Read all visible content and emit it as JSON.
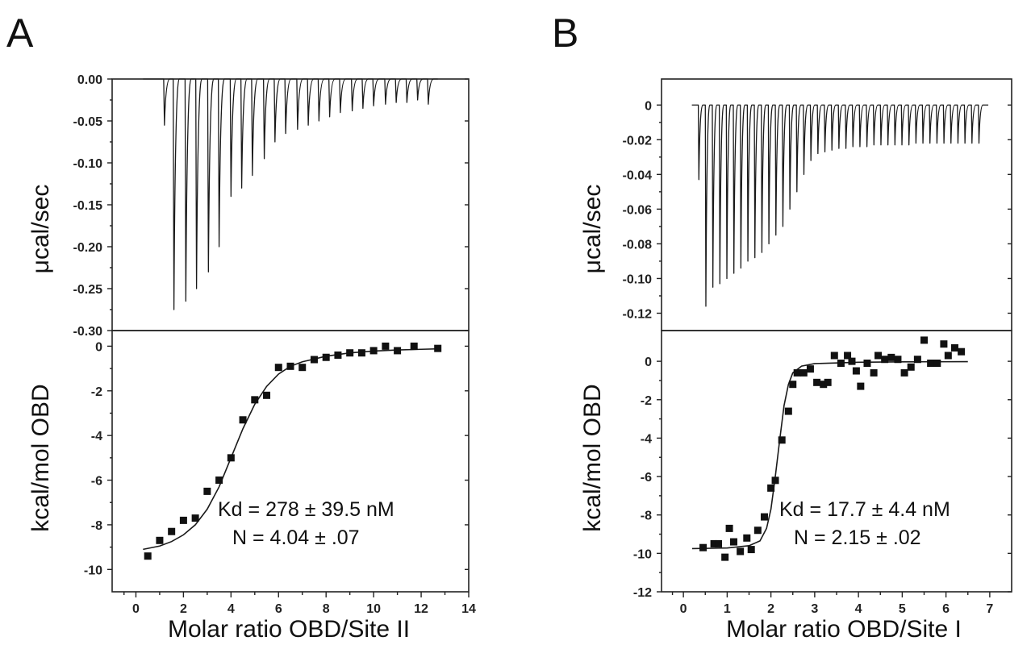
{
  "chart_data": [
    {
      "panel": "A",
      "top": {
        "type": "line",
        "ylabel": "μcal/sec",
        "ylim": [
          -0.3,
          0.0
        ],
        "yticks": [
          0.0,
          -0.05,
          -0.1,
          -0.15,
          -0.2,
          -0.25,
          -0.3
        ],
        "ytick_labels": [
          "0.00",
          "-0.05",
          "-0.10",
          "-0.15",
          "-0.20",
          "-0.25",
          "-0.30"
        ],
        "xlim": [
          -1,
          14
        ],
        "trace_x_range": [
          0.3,
          12.7
        ],
        "injection_peaks": [
          {
            "x": 1.2,
            "y": -0.055
          },
          {
            "x": 1.6,
            "y": -0.275
          },
          {
            "x": 2.1,
            "y": -0.265
          },
          {
            "x": 2.55,
            "y": -0.25
          },
          {
            "x": 3.05,
            "y": -0.23
          },
          {
            "x": 3.5,
            "y": -0.2
          },
          {
            "x": 4.0,
            "y": -0.14
          },
          {
            "x": 4.45,
            "y": -0.13
          },
          {
            "x": 4.9,
            "y": -0.115
          },
          {
            "x": 5.4,
            "y": -0.095
          },
          {
            "x": 5.85,
            "y": -0.075
          },
          {
            "x": 6.3,
            "y": -0.065
          },
          {
            "x": 6.8,
            "y": -0.06
          },
          {
            "x": 7.25,
            "y": -0.055
          },
          {
            "x": 7.7,
            "y": -0.05
          },
          {
            "x": 8.15,
            "y": -0.045
          },
          {
            "x": 8.6,
            "y": -0.04
          },
          {
            "x": 9.1,
            "y": -0.038
          },
          {
            "x": 9.55,
            "y": -0.035
          },
          {
            "x": 10.0,
            "y": -0.032
          },
          {
            "x": 10.5,
            "y": -0.03
          },
          {
            "x": 10.95,
            "y": -0.028
          },
          {
            "x": 11.4,
            "y": -0.028
          },
          {
            "x": 11.85,
            "y": -0.025
          },
          {
            "x": 12.3,
            "y": -0.03
          }
        ]
      },
      "bottom": {
        "type": "scatter",
        "ylabel": "kcal/mol OBD",
        "xlabel": "Molar ratio OBD/Site II",
        "xlim": [
          -1,
          14
        ],
        "xticks": [
          0,
          2,
          4,
          6,
          8,
          10,
          12,
          14
        ],
        "xtick_labels": [
          "0",
          "2",
          "4",
          "6",
          "8",
          "10",
          "12",
          "14"
        ],
        "ylim": [
          -11,
          0.7
        ],
        "yticks": [
          0,
          -2,
          -4,
          -6,
          -8,
          -10
        ],
        "ytick_labels": [
          "0",
          "-2",
          "-4",
          "-6",
          "-8",
          "-10"
        ],
        "points": [
          [
            0.5,
            -9.4
          ],
          [
            1.0,
            -8.7
          ],
          [
            1.5,
            -8.3
          ],
          [
            2.0,
            -7.8
          ],
          [
            2.5,
            -7.7
          ],
          [
            3.0,
            -6.5
          ],
          [
            3.5,
            -6.0
          ],
          [
            4.0,
            -5.0
          ],
          [
            4.5,
            -3.3
          ],
          [
            5.0,
            -2.4
          ],
          [
            5.5,
            -2.2
          ],
          [
            6.0,
            -0.95
          ],
          [
            6.5,
            -0.9
          ],
          [
            7.0,
            -0.95
          ],
          [
            7.5,
            -0.6
          ],
          [
            8.0,
            -0.5
          ],
          [
            8.5,
            -0.4
          ],
          [
            9.0,
            -0.3
          ],
          [
            9.5,
            -0.3
          ],
          [
            10.0,
            -0.2
          ],
          [
            10.5,
            0.0
          ],
          [
            11.0,
            -0.2
          ],
          [
            11.7,
            0.0
          ],
          [
            12.7,
            -0.1
          ]
        ],
        "fit": [
          [
            0.3,
            -9.1
          ],
          [
            1.0,
            -8.95
          ],
          [
            1.5,
            -8.75
          ],
          [
            2.0,
            -8.45
          ],
          [
            2.5,
            -8.0
          ],
          [
            3.0,
            -7.3
          ],
          [
            3.5,
            -6.3
          ],
          [
            4.0,
            -5.0
          ],
          [
            4.5,
            -3.7
          ],
          [
            5.0,
            -2.6
          ],
          [
            5.5,
            -1.8
          ],
          [
            6.0,
            -1.25
          ],
          [
            6.5,
            -0.9
          ],
          [
            7.0,
            -0.7
          ],
          [
            8.0,
            -0.45
          ],
          [
            9.0,
            -0.3
          ],
          [
            10.0,
            -0.22
          ],
          [
            11.0,
            -0.17
          ],
          [
            12.0,
            -0.14
          ],
          [
            12.7,
            -0.12
          ]
        ],
        "annotations": [
          "Kd = 278 ± 39.5 nM",
          "N = 4.04 ± .07"
        ]
      }
    },
    {
      "panel": "B",
      "top": {
        "type": "line",
        "ylabel": "μcal/sec",
        "ylim": [
          -0.13,
          0.015
        ],
        "yticks": [
          0,
          -0.02,
          -0.04,
          -0.06,
          -0.08,
          -0.1,
          -0.12
        ],
        "ytick_labels": [
          "0",
          "-0.02",
          "-0.04",
          "-0.06",
          "-0.08",
          "-0.10",
          "-0.12"
        ],
        "xlim": [
          -0.5,
          7
        ],
        "trace_x_range": [
          0.15,
          6.5
        ],
        "injection_peaks": [
          {
            "x": 0.3,
            "y": -0.043
          },
          {
            "x": 0.45,
            "y": -0.116
          },
          {
            "x": 0.6,
            "y": -0.105
          },
          {
            "x": 0.75,
            "y": -0.103
          },
          {
            "x": 0.9,
            "y": -0.1
          },
          {
            "x": 1.05,
            "y": -0.097
          },
          {
            "x": 1.2,
            "y": -0.094
          },
          {
            "x": 1.35,
            "y": -0.09
          },
          {
            "x": 1.5,
            "y": -0.088
          },
          {
            "x": 1.65,
            "y": -0.085
          },
          {
            "x": 1.8,
            "y": -0.08
          },
          {
            "x": 1.95,
            "y": -0.075
          },
          {
            "x": 2.1,
            "y": -0.07
          },
          {
            "x": 2.25,
            "y": -0.06
          },
          {
            "x": 2.4,
            "y": -0.05
          },
          {
            "x": 2.55,
            "y": -0.04
          },
          {
            "x": 2.7,
            "y": -0.032
          },
          {
            "x": 2.85,
            "y": -0.028
          },
          {
            "x": 3.0,
            "y": -0.027
          },
          {
            "x": 3.15,
            "y": -0.026
          },
          {
            "x": 3.3,
            "y": -0.025
          },
          {
            "x": 3.45,
            "y": -0.025
          },
          {
            "x": 3.6,
            "y": -0.024
          },
          {
            "x": 3.75,
            "y": -0.024
          },
          {
            "x": 3.9,
            "y": -0.024
          },
          {
            "x": 4.05,
            "y": -0.023
          },
          {
            "x": 4.2,
            "y": -0.023
          },
          {
            "x": 4.35,
            "y": -0.023
          },
          {
            "x": 4.5,
            "y": -0.023
          },
          {
            "x": 4.65,
            "y": -0.023
          },
          {
            "x": 4.8,
            "y": -0.023
          },
          {
            "x": 4.95,
            "y": -0.022
          },
          {
            "x": 5.1,
            "y": -0.022
          },
          {
            "x": 5.25,
            "y": -0.022
          },
          {
            "x": 5.4,
            "y": -0.022
          },
          {
            "x": 5.55,
            "y": -0.022
          },
          {
            "x": 5.7,
            "y": -0.022
          },
          {
            "x": 5.85,
            "y": -0.022
          },
          {
            "x": 6.0,
            "y": -0.022
          },
          {
            "x": 6.15,
            "y": -0.022
          },
          {
            "x": 6.3,
            "y": -0.022
          }
        ]
      },
      "bottom": {
        "type": "scatter",
        "ylabel": "kcal/mol OBD",
        "xlabel": "Molar ratio OBD/Site I",
        "xlim": [
          -0.5,
          7.5
        ],
        "xticks": [
          0,
          1,
          2,
          3,
          4,
          5,
          6,
          7
        ],
        "xtick_labels": [
          "0",
          "1",
          "2",
          "3",
          "4",
          "5",
          "6",
          "7"
        ],
        "ylim": [
          -12,
          1.6
        ],
        "yticks": [
          0,
          -2,
          -4,
          -6,
          -8,
          -10,
          -12
        ],
        "ytick_labels": [
          "0",
          "-2",
          "-4",
          "-6",
          "-8",
          "-10",
          "-12"
        ],
        "points": [
          [
            0.45,
            -9.7
          ],
          [
            0.7,
            -9.5
          ],
          [
            0.8,
            -9.5
          ],
          [
            0.95,
            -10.2
          ],
          [
            1.05,
            -8.7
          ],
          [
            1.15,
            -9.4
          ],
          [
            1.3,
            -9.9
          ],
          [
            1.45,
            -9.2
          ],
          [
            1.55,
            -9.8
          ],
          [
            1.7,
            -8.8
          ],
          [
            1.85,
            -8.1
          ],
          [
            2.0,
            -6.6
          ],
          [
            2.1,
            -6.2
          ],
          [
            2.25,
            -4.1
          ],
          [
            2.4,
            -2.6
          ],
          [
            2.5,
            -1.2
          ],
          [
            2.6,
            -0.6
          ],
          [
            2.75,
            -0.6
          ],
          [
            2.9,
            -0.4
          ],
          [
            3.05,
            -1.1
          ],
          [
            3.2,
            -1.2
          ],
          [
            3.3,
            -1.1
          ],
          [
            3.45,
            0.3
          ],
          [
            3.6,
            -0.1
          ],
          [
            3.75,
            0.3
          ],
          [
            3.85,
            0.0
          ],
          [
            3.95,
            -0.5
          ],
          [
            4.05,
            -1.3
          ],
          [
            4.2,
            -0.1
          ],
          [
            4.35,
            -0.6
          ],
          [
            4.45,
            0.3
          ],
          [
            4.6,
            0.1
          ],
          [
            4.75,
            0.2
          ],
          [
            4.9,
            0.1
          ],
          [
            5.05,
            -0.6
          ],
          [
            5.2,
            -0.3
          ],
          [
            5.35,
            0.1
          ],
          [
            5.5,
            1.1
          ],
          [
            5.65,
            -0.1
          ],
          [
            5.8,
            -0.1
          ],
          [
            5.95,
            0.9
          ],
          [
            6.05,
            0.3
          ],
          [
            6.2,
            0.7
          ],
          [
            6.35,
            0.5
          ]
        ],
        "fit": [
          [
            0.2,
            -9.75
          ],
          [
            1.0,
            -9.72
          ],
          [
            1.5,
            -9.6
          ],
          [
            1.75,
            -9.35
          ],
          [
            1.9,
            -8.7
          ],
          [
            2.0,
            -7.7
          ],
          [
            2.1,
            -6.0
          ],
          [
            2.2,
            -4.1
          ],
          [
            2.3,
            -2.3
          ],
          [
            2.4,
            -1.2
          ],
          [
            2.5,
            -0.6
          ],
          [
            2.7,
            -0.25
          ],
          [
            3.0,
            -0.12
          ],
          [
            4.0,
            -0.05
          ],
          [
            5.0,
            -0.03
          ],
          [
            6.5,
            -0.02
          ]
        ],
        "annotations": [
          "Kd = 17.7 ± 4.4 nM",
          "N = 2.15 ± .02"
        ]
      }
    }
  ],
  "panels": {
    "A": {
      "letter": "A",
      "top_ylabel": "μcal/sec",
      "bottom_ylabel": "kcal/mol OBD",
      "xlabel": "Molar ratio OBD/Site II",
      "kd": "Kd = 278 ± 39.5 nM",
      "n": "N = 4.04 ± .07"
    },
    "B": {
      "letter": "B",
      "top_ylabel": "μcal/sec",
      "bottom_ylabel": "kcal/mol OBD",
      "xlabel": "Molar ratio OBD/Site I",
      "kd": "Kd = 17.7 ± 4.4 nM",
      "n": "N = 2.15 ± .02"
    }
  }
}
